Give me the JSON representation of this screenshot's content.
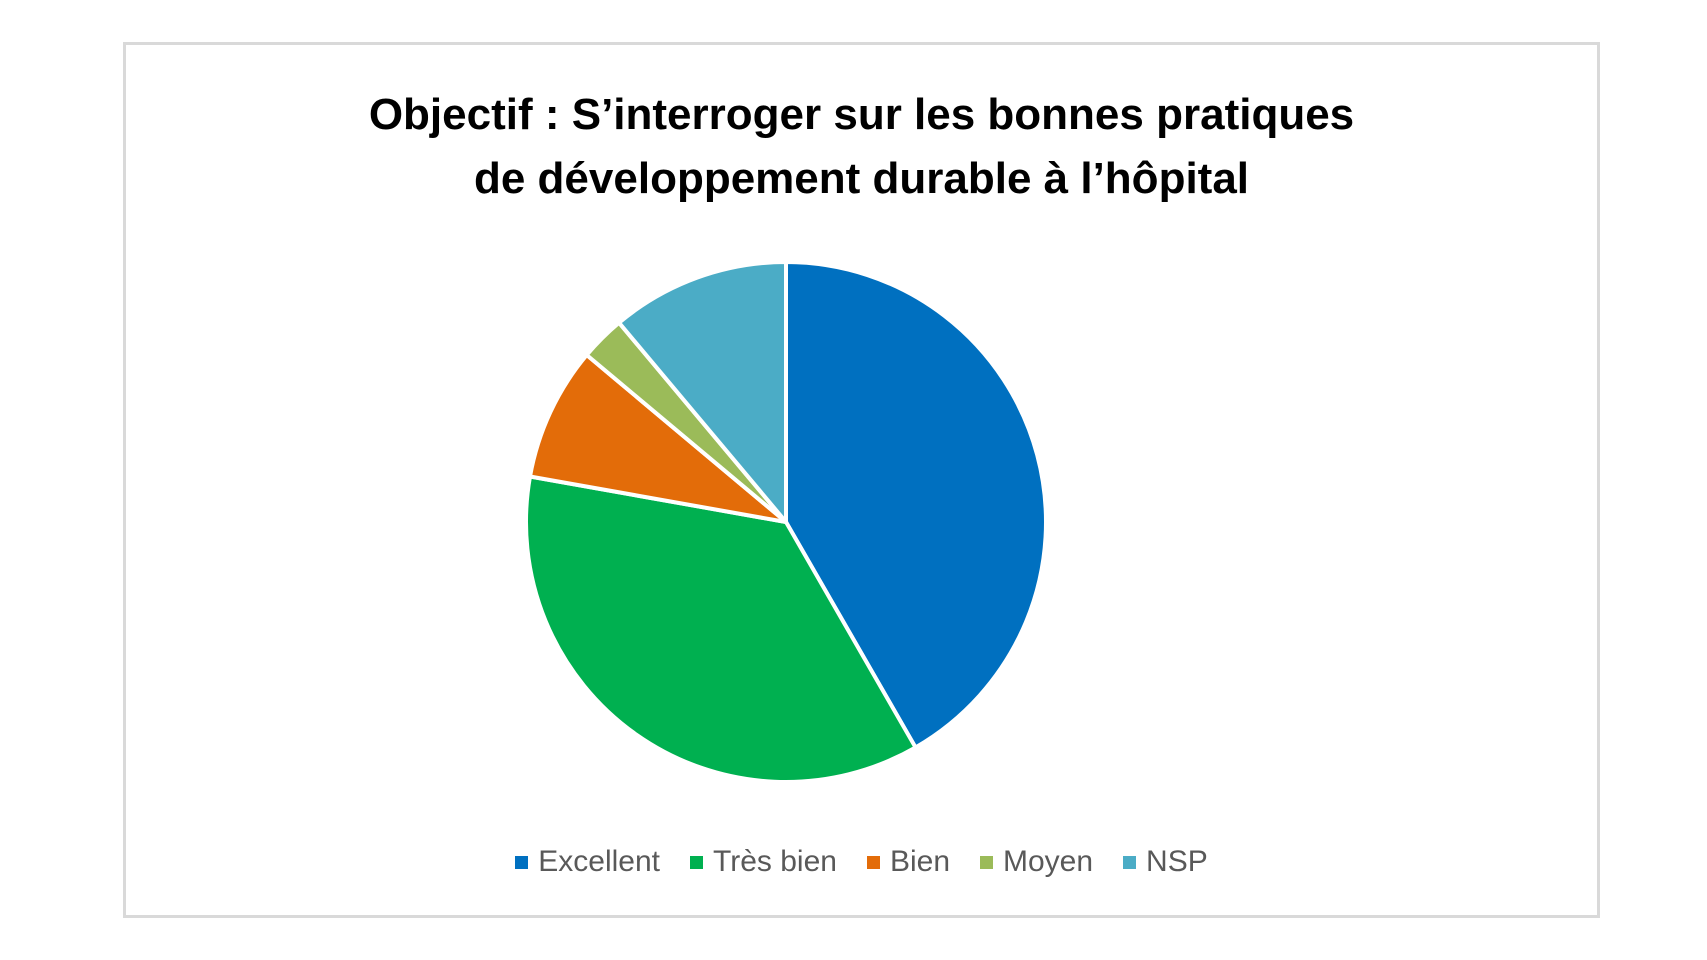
{
  "chart_data": {
    "type": "pie",
    "title": "Objectif : S’interroger sur les bonnes pratiques de développement durable à l’hôpital",
    "title_lines": [
      "Objectif : S’interroger sur les bonnes pratiques",
      "de développement durable à l’hôpital"
    ],
    "categories": [
      "Excellent",
      "Très bien",
      "Bien",
      "Moyen",
      "NSP"
    ],
    "values": [
      41.7,
      36.1,
      8.3,
      2.8,
      11.1
    ],
    "colors": [
      "#0070c0",
      "#00b050",
      "#e36c09",
      "#9bbb59",
      "#4bacc6"
    ],
    "legend_position": "bottom"
  }
}
